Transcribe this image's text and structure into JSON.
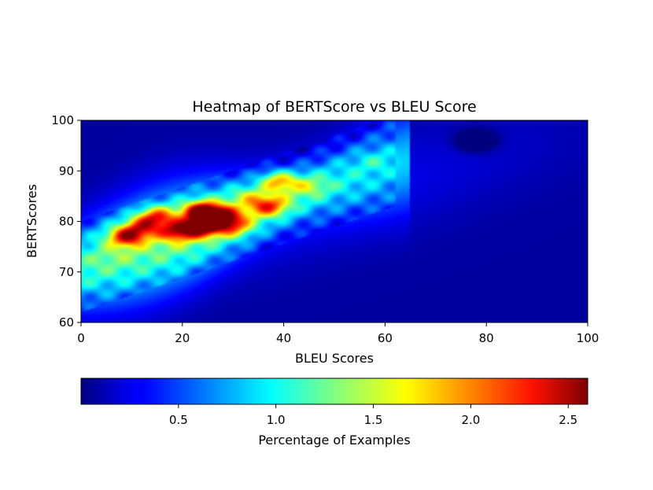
{
  "chart_data": {
    "type": "heatmap",
    "title": "Heatmap of BERTScore vs BLEU Score",
    "xlabel": "BLEU Scores",
    "ylabel": "BERTScores",
    "xlim": [
      0,
      100
    ],
    "ylim": [
      60,
      100
    ],
    "x_ticks": [
      0,
      20,
      40,
      60,
      80,
      100
    ],
    "y_ticks": [
      60,
      70,
      80,
      90,
      100
    ],
    "colormap": "jet",
    "grid": false,
    "colorbar": {
      "label": "Percentage of Examples",
      "range": [
        0,
        2.6
      ],
      "ticks": [
        0.5,
        1.0,
        1.5,
        2.0,
        2.5
      ],
      "orientation": "horizontal",
      "placement": "bottom"
    },
    "density_hotspots": [
      {
        "x": 24,
        "y": 82,
        "value": 2.6
      },
      {
        "x": 24,
        "y": 79,
        "value": 2.4
      },
      {
        "x": 9,
        "y": 77,
        "value": 2.2
      },
      {
        "x": 15,
        "y": 81,
        "value": 2.0
      },
      {
        "x": 19,
        "y": 78,
        "value": 2.0
      },
      {
        "x": 28,
        "y": 81,
        "value": 2.0
      },
      {
        "x": 37,
        "y": 83,
        "value": 1.9
      },
      {
        "x": 39,
        "y": 88,
        "value": 1.9
      },
      {
        "x": 30,
        "y": 79,
        "value": 1.7
      },
      {
        "x": 33,
        "y": 85,
        "value": 1.3
      },
      {
        "x": 45,
        "y": 87,
        "value": 1.3
      },
      {
        "x": 58,
        "y": 92,
        "value": 1.1
      },
      {
        "x": 6,
        "y": 73,
        "value": 1.0
      },
      {
        "x": 12,
        "y": 79,
        "value": 1.8
      },
      {
        "x": 78,
        "y": 96,
        "value": 0.3
      }
    ]
  }
}
